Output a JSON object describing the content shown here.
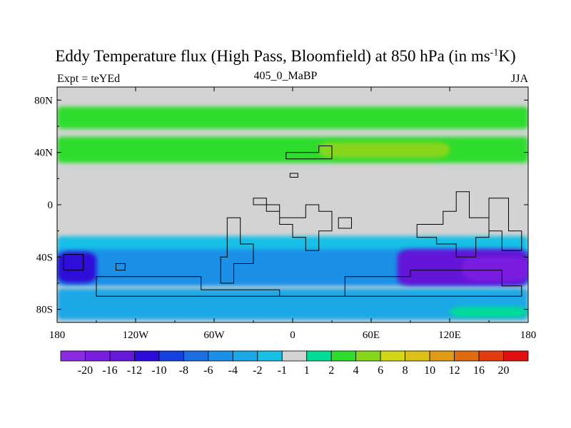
{
  "title": {
    "main": "Eddy Temperature flux (High Pass, Bloomfield) at 850 hPa (in ms",
    "sup": "-1",
    "tail": "K)"
  },
  "subtitle": {
    "left": "Expt = teYEd",
    "center": "405_0_MaBP",
    "right": "JJA"
  },
  "chart_data": {
    "type": "heatmap",
    "xticks": [
      "180",
      "120W",
      "60W",
      "0",
      "60E",
      "120E",
      "180"
    ],
    "xtick_values": [
      -180,
      -120,
      -60,
      0,
      60,
      120,
      180
    ],
    "yticks": [
      "80N",
      "40N",
      "0",
      "40S",
      "80S"
    ],
    "ytick_values": [
      80,
      40,
      0,
      -40,
      -80
    ],
    "xlim": [
      -180,
      180
    ],
    "ylim": [
      -90,
      90
    ],
    "colorbar": {
      "labels": [
        "-20",
        "-16",
        "-12",
        "-10",
        "-8",
        "-6",
        "-4",
        "-2",
        "-1",
        "1",
        "2",
        "4",
        "6",
        "8",
        "10",
        "12",
        "16",
        "20"
      ],
      "colors": [
        "#8a2be2",
        "#7a1fe0",
        "#6418d8",
        "#2d0bd8",
        "#1441e0",
        "#1a6ee0",
        "#1c8fe6",
        "#1aa8e6",
        "#16c0e6",
        "#d3d3d3",
        "#00dc98",
        "#2edc2e",
        "#88d61a",
        "#d4d618",
        "#dcc018",
        "#e09c14",
        "#e06c12",
        "#e03c10",
        "#e01010"
      ]
    },
    "regions": [
      {
        "lon": [
          -180,
          180
        ],
        "lat": [
          58,
          75
        ],
        "level": "2 to 4"
      },
      {
        "lon": [
          -180,
          180
        ],
        "lat": [
          32,
          52
        ],
        "level": "2 to 4"
      },
      {
        "lon": [
          20,
          120
        ],
        "lat": [
          36,
          48
        ],
        "level": "4 to 6"
      },
      {
        "lon": [
          -180,
          180
        ],
        "lat": [
          -60,
          -24
        ],
        "level": "-1 to -2"
      },
      {
        "lon": [
          -180,
          180
        ],
        "lat": [
          -62,
          -34
        ],
        "level": "-4 to -6"
      },
      {
        "lon": [
          -180,
          -150
        ],
        "lat": [
          -60,
          -36
        ],
        "level": "-8 to -12"
      },
      {
        "lon": [
          80,
          180
        ],
        "lat": [
          -62,
          -34
        ],
        "level": "-10 to -16"
      },
      {
        "lon": [
          130,
          180
        ],
        "lat": [
          -58,
          -40
        ],
        "level": "-16 to -20"
      },
      {
        "lon": [
          -180,
          180
        ],
        "lat": [
          -88,
          -64
        ],
        "level": "-1 to -4"
      },
      {
        "lon": [
          120,
          180
        ],
        "lat": [
          -86,
          -78
        ],
        "level": "1 to 2"
      }
    ]
  }
}
